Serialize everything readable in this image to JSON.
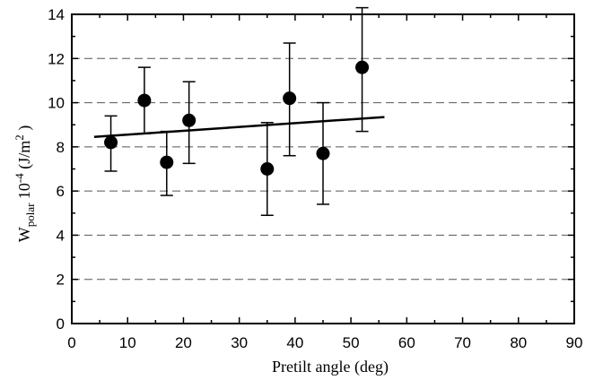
{
  "chart_data": {
    "type": "scatter",
    "title": "",
    "xlabel": "Pretilt angle (deg)",
    "ylabel": {
      "base": "W",
      "sub": "polar",
      "mid": " 10",
      "exp": "-4",
      "unit_open": " (J/m",
      "unit_exp": "2",
      "unit_close": " )"
    },
    "xlim": [
      0,
      90
    ],
    "ylim": [
      0,
      14
    ],
    "xticks": [
      0,
      10,
      20,
      30,
      40,
      50,
      60,
      70,
      80,
      90
    ],
    "yticks": [
      0,
      2,
      4,
      6,
      8,
      10,
      12,
      14
    ],
    "grid": "horizontal dashed",
    "points": [
      {
        "x": 7,
        "y": 8.2,
        "err_low": 6.9,
        "err_high": 9.4
      },
      {
        "x": 13,
        "y": 10.1,
        "err_low": 8.6,
        "err_high": 11.6
      },
      {
        "x": 17,
        "y": 7.3,
        "err_low": 5.8,
        "err_high": 8.7
      },
      {
        "x": 21,
        "y": 9.2,
        "err_low": 7.25,
        "err_high": 10.95
      },
      {
        "x": 35,
        "y": 7.0,
        "err_low": 4.9,
        "err_high": 9.1
      },
      {
        "x": 39,
        "y": 10.2,
        "err_low": 7.6,
        "err_high": 12.7
      },
      {
        "x": 45,
        "y": 7.7,
        "err_low": 5.4,
        "err_high": 10.0
      },
      {
        "x": 52,
        "y": 11.6,
        "err_low": 8.7,
        "err_high": 14.3
      }
    ],
    "fit_line": {
      "x": [
        4,
        56
      ],
      "y": [
        8.45,
        9.35
      ]
    }
  }
}
